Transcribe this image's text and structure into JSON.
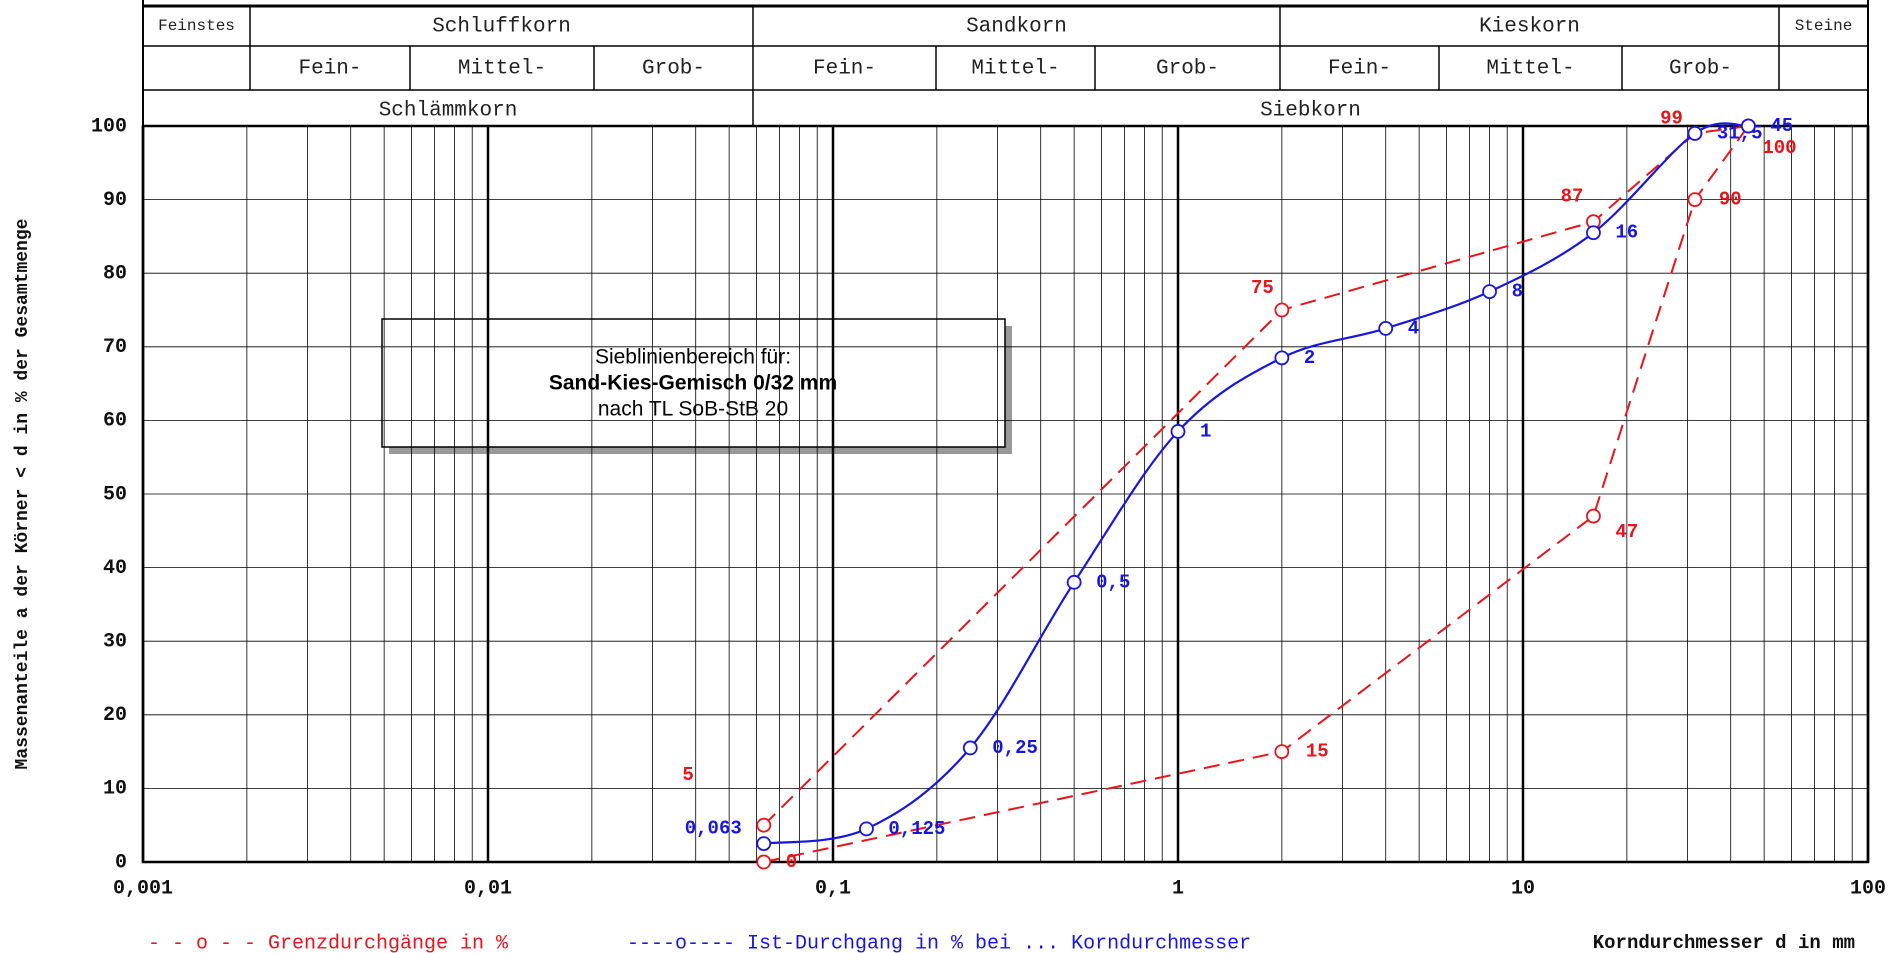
{
  "chart_data": {
    "type": "line",
    "xscale": "log",
    "minor_grid": true,
    "header_rows": [
      [
        "Feinstes",
        "Schluffkorn",
        "Sandkorn",
        "Kieskorn",
        "Steine"
      ],
      [
        "Fein-",
        "Mittel-",
        "Grob-",
        "Fein-",
        "Mittel-",
        "Grob-",
        "Fein-",
        "Mittel-",
        "Grob-"
      ],
      [
        "Schlämmkorn",
        "Siebkorn"
      ]
    ],
    "annotation": [
      "Sieblinienbereich für:",
      "Sand-Kies-Gemisch 0/32 mm",
      "nach TL SoB-StB 20"
    ],
    "y_label": "Massenanteile a der Körner < d in % der Gesamtmenge",
    "x_label": "Korndurchmesser d in mm",
    "xlim": [
      0.001,
      100
    ],
    "xticks": [
      {
        "value": 0.001,
        "label": "0,001"
      },
      {
        "value": 0.01,
        "label": "0,01"
      },
      {
        "value": 0.1,
        "label": "0,1"
      },
      1,
      10,
      100
    ],
    "ylim": [
      0,
      100
    ],
    "yticks": [
      0,
      10,
      20,
      30,
      40,
      50,
      60,
      70,
      80,
      90,
      100
    ],
    "series": [
      {
        "name": "- - o - - Grenzdurchgänge in %",
        "color": "#e8141b",
        "dashed": true,
        "x": [
          0.063,
          2,
          16,
          31.5,
          45
        ],
        "values": [
          5,
          75,
          87,
          99,
          100
        ]
      },
      {
        "name": "- - o - - Grenzdurchgänge in %",
        "color": "#e8141b",
        "dashed": true,
        "x": [
          0.063,
          2,
          16,
          31.5,
          45
        ],
        "values": [
          0,
          15,
          47,
          90,
          100
        ]
      },
      {
        "name": "----o---- Ist-Durchgang in % bei ... Korndurchmesser",
        "color": "#1616e0",
        "smooth": true,
        "x": [
          0.063,
          0.125,
          0.25,
          0.5,
          1,
          2,
          4,
          8,
          16,
          31.5,
          45
        ],
        "x_labels": [
          "0,063",
          "0,125",
          "0,25",
          "0,5",
          "1",
          "2",
          "4",
          "8",
          "16",
          "31,5",
          "45"
        ],
        "values": [
          2.5,
          4.5,
          15.5,
          38,
          58.5,
          68.5,
          72.5,
          77.5,
          85.5,
          99,
          100
        ]
      }
    ]
  }
}
